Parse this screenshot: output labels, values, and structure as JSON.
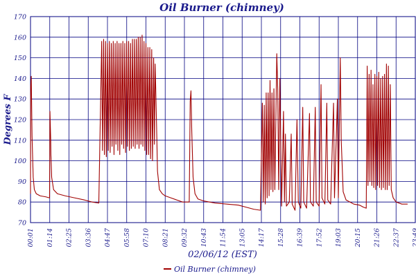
{
  "chart_data": {
    "type": "line",
    "title": "Oil Burner (chimney)",
    "xlabel": "02/06/12 (EST)",
    "ylabel": "Degrees F",
    "ylim": [
      70,
      170
    ],
    "y_ticks": [
      70,
      80,
      90,
      100,
      110,
      120,
      130,
      140,
      150,
      160,
      170
    ],
    "x_ticks": [
      "00:01",
      "01:14",
      "02:25",
      "03:36",
      "04:47",
      "05:58",
      "07:10",
      "08:21",
      "09:32",
      "10:43",
      "11:54",
      "13:05",
      "14:17",
      "15:28",
      "16:39",
      "17:52",
      "19:03",
      "20:15",
      "21:26",
      "22:37",
      "23:49"
    ],
    "grid": true,
    "legend_position": "bottom-center",
    "series": [
      {
        "name": "Oil Burner (chimney)",
        "color": "#a00000",
        "points": [
          [
            0.0,
            84
          ],
          [
            0.01,
            136
          ],
          [
            0.04,
            141
          ],
          [
            0.08,
            112
          ],
          [
            0.14,
            92
          ],
          [
            0.2,
            86
          ],
          [
            0.3,
            84
          ],
          [
            0.5,
            83
          ],
          [
            0.8,
            82.5
          ],
          [
            0.99,
            82
          ],
          [
            1.01,
            124
          ],
          [
            1.05,
            110
          ],
          [
            1.06,
            103
          ],
          [
            1.1,
            92
          ],
          [
            1.2,
            86
          ],
          [
            1.4,
            84
          ],
          [
            1.8,
            83
          ],
          [
            2.3,
            82
          ],
          [
            2.8,
            81
          ],
          [
            3.2,
            80
          ],
          [
            3.55,
            79.5
          ],
          [
            3.6,
            106
          ],
          [
            3.7,
            158
          ],
          [
            3.74,
            105
          ],
          [
            3.8,
            159
          ],
          [
            3.84,
            103
          ],
          [
            3.9,
            158
          ],
          [
            3.94,
            102
          ],
          [
            4.0,
            157
          ],
          [
            4.04,
            105
          ],
          [
            4.1,
            158
          ],
          [
            4.14,
            104
          ],
          [
            4.2,
            157
          ],
          [
            4.24,
            107
          ],
          [
            4.3,
            158
          ],
          [
            4.34,
            103
          ],
          [
            4.4,
            157
          ],
          [
            4.44,
            108
          ],
          [
            4.5,
            158
          ],
          [
            4.54,
            105
          ],
          [
            4.6,
            157
          ],
          [
            4.64,
            103
          ],
          [
            4.7,
            157
          ],
          [
            4.74,
            108
          ],
          [
            4.8,
            158
          ],
          [
            4.84,
            106
          ],
          [
            4.9,
            157
          ],
          [
            4.94,
            104
          ],
          [
            5.0,
            158
          ],
          [
            5.04,
            107
          ],
          [
            5.1,
            158
          ],
          [
            5.14,
            105
          ],
          [
            5.2,
            157
          ],
          [
            5.24,
            106
          ],
          [
            5.3,
            159
          ],
          [
            5.34,
            107
          ],
          [
            5.4,
            159
          ],
          [
            5.44,
            106
          ],
          [
            5.5,
            159
          ],
          [
            5.54,
            108
          ],
          [
            5.6,
            160
          ],
          [
            5.64,
            106
          ],
          [
            5.7,
            160
          ],
          [
            5.74,
            108
          ],
          [
            5.8,
            161
          ],
          [
            5.84,
            107
          ],
          [
            5.9,
            158
          ],
          [
            5.94,
            105
          ],
          [
            6.0,
            157
          ],
          [
            6.04,
            103
          ],
          [
            6.1,
            155
          ],
          [
            6.14,
            103
          ],
          [
            6.2,
            155
          ],
          [
            6.24,
            101
          ],
          [
            6.3,
            154
          ],
          [
            6.34,
            100
          ],
          [
            6.4,
            150
          ],
          [
            6.44,
            108
          ],
          [
            6.48,
            147
          ],
          [
            6.55,
            118
          ],
          [
            6.6,
            95
          ],
          [
            6.7,
            86
          ],
          [
            6.85,
            84
          ],
          [
            7.0,
            83
          ],
          [
            7.3,
            82
          ],
          [
            7.6,
            81
          ],
          [
            7.9,
            80
          ],
          [
            8.25,
            80
          ],
          [
            8.3,
            129
          ],
          [
            8.34,
            134
          ],
          [
            8.38,
            115
          ],
          [
            8.45,
            92
          ],
          [
            8.55,
            84
          ],
          [
            8.7,
            81.5
          ],
          [
            9.0,
            80.5
          ],
          [
            9.6,
            79.5
          ],
          [
            10.2,
            79
          ],
          [
            10.8,
            78.5
          ],
          [
            11.2,
            77.5
          ],
          [
            11.6,
            76.5
          ],
          [
            11.95,
            76
          ],
          [
            12.05,
            128
          ],
          [
            12.1,
            80
          ],
          [
            12.15,
            127
          ],
          [
            12.2,
            79
          ],
          [
            12.25,
            133
          ],
          [
            12.3,
            82
          ],
          [
            12.35,
            133
          ],
          [
            12.4,
            83
          ],
          [
            12.45,
            139
          ],
          [
            12.5,
            86
          ],
          [
            12.55,
            133
          ],
          [
            12.6,
            85
          ],
          [
            12.65,
            135
          ],
          [
            12.7,
            86
          ],
          [
            12.8,
            152
          ],
          [
            12.85,
            135
          ],
          [
            12.9,
            86
          ],
          [
            12.96,
            140
          ],
          [
            13.05,
            78
          ],
          [
            13.15,
            124
          ],
          [
            13.2,
            80
          ],
          [
            13.25,
            113
          ],
          [
            13.3,
            78
          ],
          [
            13.45,
            80
          ],
          [
            13.55,
            113
          ],
          [
            13.6,
            79
          ],
          [
            13.75,
            76
          ],
          [
            13.85,
            120
          ],
          [
            13.92,
            80
          ],
          [
            14.05,
            77
          ],
          [
            14.15,
            126
          ],
          [
            14.2,
            80
          ],
          [
            14.35,
            77
          ],
          [
            14.5,
            123
          ],
          [
            14.55,
            80
          ],
          [
            14.7,
            78
          ],
          [
            14.8,
            126
          ],
          [
            14.85,
            80
          ],
          [
            15.0,
            78
          ],
          [
            15.1,
            137
          ],
          [
            15.15,
            82
          ],
          [
            15.3,
            79
          ],
          [
            15.4,
            128
          ],
          [
            15.45,
            81
          ],
          [
            15.6,
            79
          ],
          [
            15.75,
            128
          ],
          [
            15.8,
            82
          ],
          [
            15.95,
            130
          ],
          [
            16.0,
            82
          ],
          [
            16.1,
            150
          ],
          [
            16.15,
            110
          ],
          [
            16.25,
            85
          ],
          [
            16.4,
            81
          ],
          [
            16.8,
            79
          ],
          [
            17.1,
            78.5
          ],
          [
            17.3,
            77.5
          ],
          [
            17.45,
            77
          ],
          [
            17.5,
            146
          ],
          [
            17.54,
            88
          ],
          [
            17.6,
            142
          ],
          [
            17.64,
            90
          ],
          [
            17.7,
            144
          ],
          [
            17.74,
            88
          ],
          [
            17.8,
            137
          ],
          [
            17.84,
            87
          ],
          [
            17.9,
            142
          ],
          [
            17.94,
            86
          ],
          [
            18.0,
            141
          ],
          [
            18.04,
            88
          ],
          [
            18.1,
            143
          ],
          [
            18.14,
            87
          ],
          [
            18.2,
            140
          ],
          [
            18.24,
            86
          ],
          [
            18.3,
            141
          ],
          [
            18.34,
            87
          ],
          [
            18.4,
            142
          ],
          [
            18.44,
            86
          ],
          [
            18.5,
            147
          ],
          [
            18.54,
            86
          ],
          [
            18.6,
            146
          ],
          [
            18.64,
            88
          ],
          [
            18.7,
            137
          ],
          [
            18.75,
            86
          ],
          [
            18.85,
            82
          ],
          [
            19.0,
            80
          ],
          [
            19.3,
            79
          ],
          [
            19.6,
            79
          ]
        ]
      }
    ]
  }
}
